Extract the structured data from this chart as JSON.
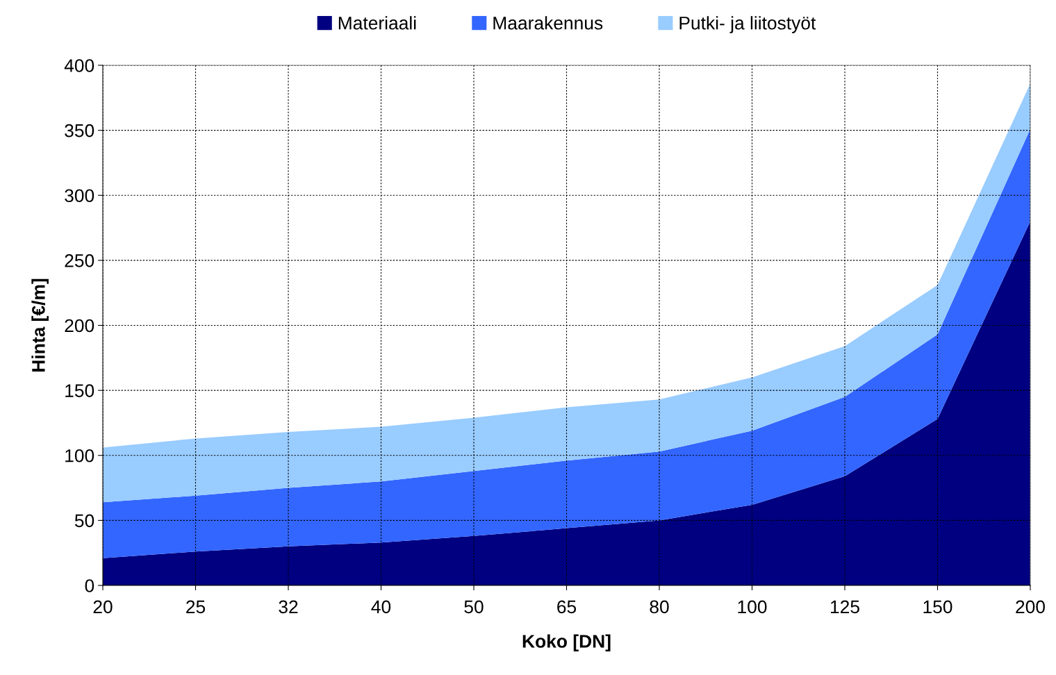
{
  "chart_data": {
    "type": "area",
    "stacked": true,
    "xlabel": "Koko [DN]",
    "ylabel": "Hinta [€/m]",
    "categories": [
      "20",
      "25",
      "32",
      "40",
      "50",
      "65",
      "80",
      "100",
      "125",
      "150",
      "200"
    ],
    "series": [
      {
        "name": "Materiaali",
        "color": "#000080",
        "values": [
          21,
          26,
          30,
          33,
          38,
          44,
          50,
          62,
          84,
          128,
          280
        ]
      },
      {
        "name": "Maarakennus",
        "color": "#3366ff",
        "values": [
          43,
          43,
          45,
          47,
          50,
          52,
          53,
          57,
          61,
          65,
          71
        ]
      },
      {
        "name": "Putki- ja liitostyöt",
        "color": "#99ccff",
        "values": [
          42,
          44,
          43,
          42,
          41,
          41,
          40,
          41,
          39,
          38,
          35
        ]
      }
    ],
    "ylim": [
      0,
      400
    ],
    "yticks": [
      0,
      50,
      100,
      150,
      200,
      250,
      300,
      350,
      400
    ],
    "grid": true,
    "legend": "top"
  }
}
